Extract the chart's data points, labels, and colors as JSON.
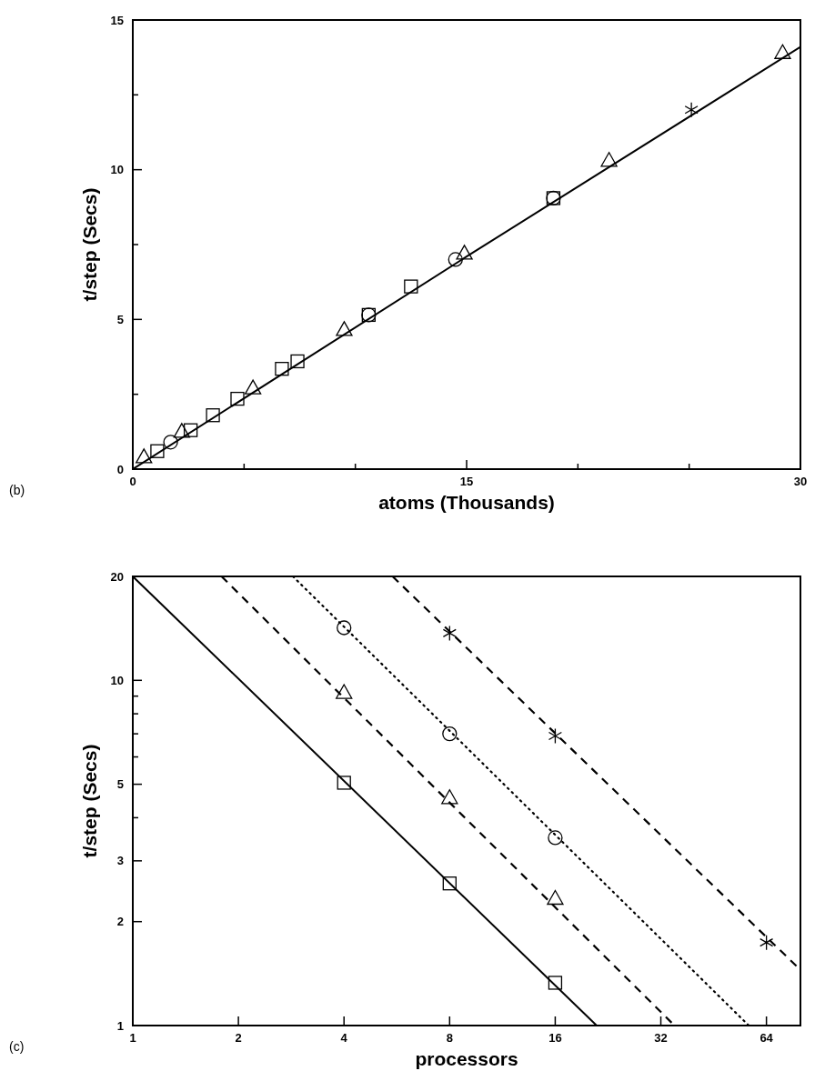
{
  "chart_data": [
    {
      "type": "scatter",
      "xlabel": "atoms (Thousands)",
      "ylabel": "t/step (Secs)",
      "annotations": [
        "(b)"
      ],
      "xlim": [
        0,
        30
      ],
      "ylim": [
        0,
        15
      ],
      "xticks": [
        0,
        {
          "value": 5,
          "label": null
        },
        {
          "value": 10,
          "label": null
        },
        15,
        {
          "value": 20,
          "label": null
        },
        {
          "value": 25,
          "label": null
        },
        30
      ],
      "yticks": [
        0,
        {
          "value": 2.5,
          "label": null
        },
        5,
        {
          "value": 7.5,
          "label": null
        },
        10,
        {
          "value": 12.5,
          "label": null
        },
        15
      ],
      "grid": false,
      "series": [
        {
          "type": "line",
          "color": "#000000",
          "marker": "none",
          "line_style": "solid",
          "x": [
            0,
            15,
            30
          ],
          "values": [
            0,
            7.1,
            14.1
          ]
        },
        {
          "color": "#000000",
          "marker": "square",
          "x": [
            1.1,
            6.7,
            10.6,
            18.9
          ],
          "values": [
            0.6,
            3.35,
            5.15,
            9.05
          ]
        },
        {
          "color": "#000000",
          "marker": "circle",
          "x": [
            1.7,
            10.6,
            14.5,
            18.9
          ],
          "values": [
            0.9,
            5.15,
            7.0,
            9.05
          ]
        },
        {
          "color": "#000000",
          "marker": "triangle",
          "x": [
            0.5,
            2.2,
            5.4,
            9.5,
            14.9,
            21.4,
            29.2
          ],
          "values": [
            0.4,
            1.25,
            2.7,
            4.65,
            7.2,
            10.3,
            13.9
          ]
        },
        {
          "color": "#000000",
          "marker": "square",
          "x": [
            2.6,
            3.6,
            4.7,
            7.4,
            12.5
          ],
          "values": [
            1.3,
            1.8,
            2.35,
            3.6,
            6.1
          ]
        },
        {
          "color": "#000000",
          "marker": "cross",
          "x": [
            25.1
          ],
          "values": [
            12.0
          ]
        }
      ]
    },
    {
      "type": "scatter",
      "xlabel": "processors",
      "ylabel": "t/step (Secs)",
      "annotations": [
        "(c)"
      ],
      "log": "xy",
      "xlim": [
        1,
        80
      ],
      "ylim": [
        1,
        20
      ],
      "xticks": [
        1,
        2,
        4,
        8,
        16,
        32,
        64
      ],
      "yticks": [
        1,
        2,
        3,
        {
          "value": 4,
          "label": null
        },
        5,
        {
          "value": 6,
          "label": null
        },
        {
          "value": 7,
          "label": null
        },
        {
          "value": 8,
          "label": null
        },
        {
          "value": 9,
          "label": null
        },
        10,
        20
      ],
      "grid": false,
      "series": [
        {
          "type": "line",
          "color": "#000000",
          "marker": "none",
          "line_style": "solid",
          "x": [
            1,
            21
          ],
          "values": [
            20,
            1
          ]
        },
        {
          "type": "line",
          "color": "#000000",
          "marker": "none",
          "line_style": "dashed",
          "x": [
            1.79,
            35
          ],
          "values": [
            20,
            1
          ]
        },
        {
          "type": "line",
          "color": "#000000",
          "marker": "none",
          "line_style": "dotted",
          "x": [
            2.86,
            57
          ],
          "values": [
            20,
            1
          ]
        },
        {
          "type": "line",
          "color": "#000000",
          "marker": "none",
          "line_style": "dashed",
          "x": [
            5.5,
            80
          ],
          "values": [
            20,
            1.45
          ]
        },
        {
          "color": "#000000",
          "marker": "square",
          "x": [
            4,
            8,
            16
          ],
          "values": [
            5.05,
            2.58,
            1.33
          ]
        },
        {
          "color": "#000000",
          "marker": "triangle",
          "x": [
            4,
            8,
            16
          ],
          "values": [
            9.2,
            4.56,
            2.33
          ]
        },
        {
          "color": "#000000",
          "marker": "circle",
          "x": [
            4,
            8,
            16
          ],
          "values": [
            14.2,
            7.0,
            3.5
          ]
        },
        {
          "color": "#000000",
          "marker": "cross",
          "x": [
            8,
            16,
            64
          ],
          "values": [
            13.7,
            6.9,
            1.74
          ]
        }
      ]
    }
  ]
}
